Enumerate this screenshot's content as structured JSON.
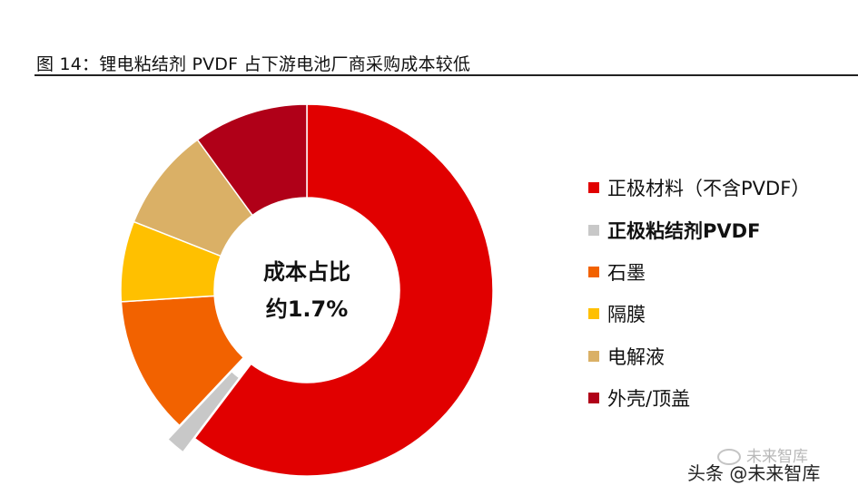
{
  "caption": "图  14：锂电粘结剂 PVDF 占下游电池厂商采购成本较低",
  "chart_data": {
    "type": "pie",
    "subtype": "donut",
    "title": "锂电粘结剂 PVDF 占下游电池厂商采购成本较低",
    "center_text": [
      "成本占比",
      "约1.7%"
    ],
    "categories": [
      "正极材料（不含PVDF）",
      "正极粘结剂PVDF",
      "石墨",
      "隔膜",
      "电解液",
      "外壳/顶盖"
    ],
    "values": [
      60.3,
      1.7,
      12.0,
      7.0,
      9.0,
      10.0
    ],
    "unit": "%",
    "colors": [
      "#E10000",
      "#C8C8C8",
      "#F26200",
      "#FFC000",
      "#DAB066",
      "#B00018"
    ],
    "exploded": [
      false,
      true,
      false,
      false,
      false,
      false
    ],
    "legend_bold": [
      false,
      true,
      false,
      false,
      false,
      false
    ],
    "legend_position": "right"
  },
  "watermark": {
    "top": "未来智库",
    "bottom": "头条 @未来智库"
  }
}
